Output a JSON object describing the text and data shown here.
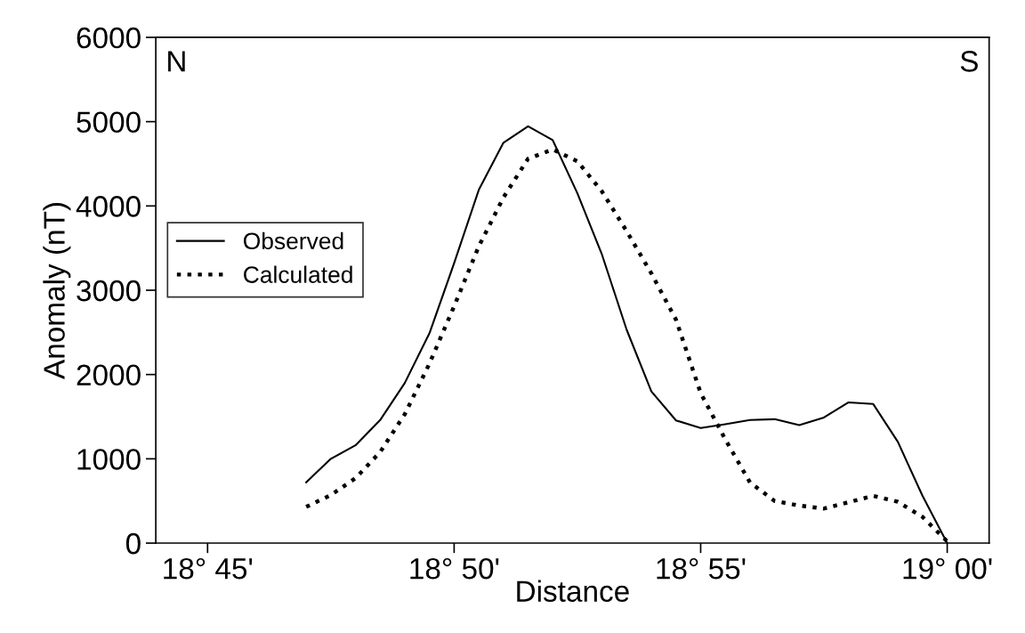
{
  "chart_data": {
    "type": "line",
    "xlabel": "Distance",
    "ylabel": "Anomaly (nT)",
    "annotations": [
      "N",
      "S"
    ],
    "categories": [
      "18° 45'",
      null,
      null,
      null,
      null,
      null,
      null,
      null,
      null,
      null,
      "18° 50'",
      null,
      null,
      null,
      null,
      null,
      null,
      null,
      null,
      null,
      "18° 55'",
      null,
      null,
      null,
      null,
      null,
      null,
      null,
      null,
      null,
      "19° 00'"
    ],
    "ylim": [
      0,
      6000
    ],
    "yticks": [
      0,
      1000,
      2000,
      3000,
      4000,
      5000,
      6000
    ],
    "grid": false,
    "legend": "left",
    "marker": "none",
    "series": [
      {
        "name": "Observed",
        "color": "#000000",
        "line_style": "solid",
        "values": [
          null,
          null,
          null,
          null,
          720,
          1000,
          1160,
          1460,
          1900,
          2490,
          3320,
          4190,
          4750,
          4945,
          4780,
          4150,
          3420,
          2530,
          1800,
          1455,
          1365,
          1410,
          1460,
          1470,
          1400,
          1490,
          1670,
          1650,
          1200,
          560,
          0
        ]
      },
      {
        "name": "Calculated",
        "color": "#000000",
        "line_style": "dotted",
        "values": [
          null,
          null,
          null,
          null,
          430,
          570,
          770,
          1080,
          1530,
          2130,
          2810,
          3520,
          4100,
          4560,
          4670,
          4530,
          4170,
          3700,
          3200,
          2650,
          1780,
          1230,
          720,
          500,
          445,
          410,
          485,
          560,
          490,
          310,
          20
        ]
      }
    ]
  }
}
